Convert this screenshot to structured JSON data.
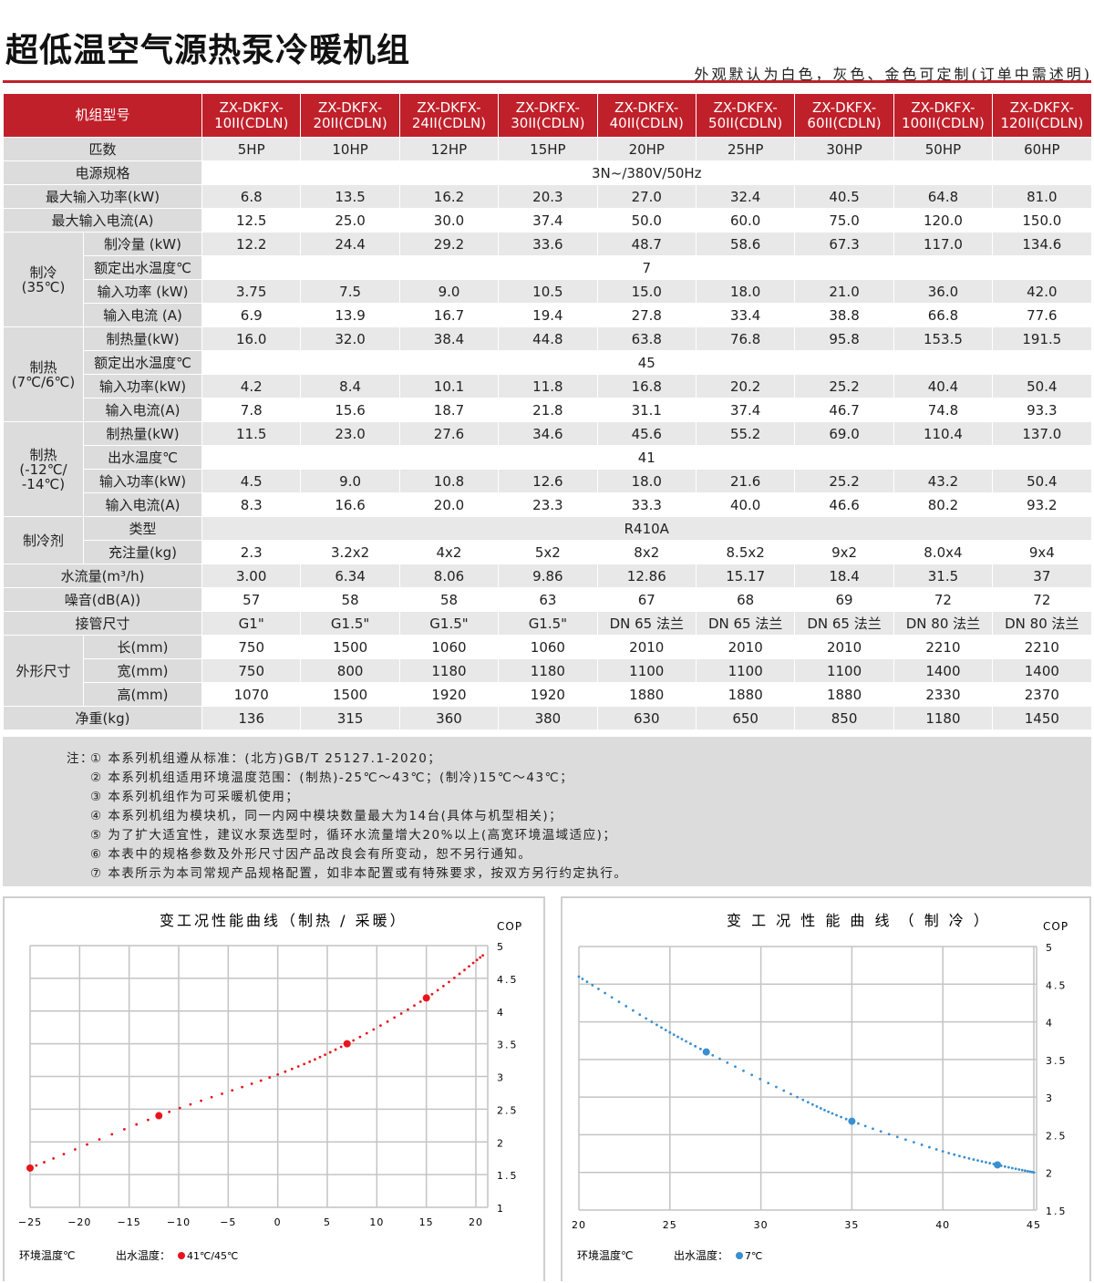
{
  "header": {
    "title": "超低温空气源热泵冷暖机组",
    "subtitle": "外观默认为白色，灰色、金色可定制(订单中需述明)"
  },
  "table": {
    "model_label": "机组型号",
    "models": [
      "ZX-DKFX-\n10II(CDLN)",
      "ZX-DKFX-\n20II(CDLN)",
      "ZX-DKFX-\n24II(CDLN)",
      "ZX-DKFX-\n30II(CDLN)",
      "ZX-DKFX-\n40II(CDLN)",
      "ZX-DKFX-\n50II(CDLN)",
      "ZX-DKFX-\n60II(CDLN)",
      "ZX-DKFX-\n100II(CDLN)",
      "ZX-DKFX-\n120II(CDLN)"
    ],
    "groups": [
      {
        "label": "匹数",
        "rows": [
          {
            "values": [
              "5HP",
              "10HP",
              "12HP",
              "15HP",
              "20HP",
              "25HP",
              "30HP",
              "50HP",
              "60HP"
            ]
          }
        ]
      },
      {
        "label": "电源规格",
        "rows": [
          {
            "span": "3N~/380V/50Hz"
          }
        ]
      },
      {
        "label": "最大输入功率(kW)",
        "rows": [
          {
            "values": [
              "6.8",
              "13.5",
              "16.2",
              "20.3",
              "27.0",
              "32.4",
              "40.5",
              "64.8",
              "81.0"
            ]
          }
        ]
      },
      {
        "label": "最大输入电流(A)",
        "rows": [
          {
            "values": [
              "12.5",
              "25.0",
              "30.0",
              "37.4",
              "50.0",
              "60.0",
              "75.0",
              "120.0",
              "150.0"
            ]
          }
        ]
      },
      {
        "label": "制冷\n(35℃)",
        "rows": [
          {
            "label": "制冷量 (kW)",
            "values": [
              "12.2",
              "24.4",
              "29.2",
              "33.6",
              "48.7",
              "58.6",
              "67.3",
              "117.0",
              "134.6"
            ]
          },
          {
            "label": "额定出水温度℃",
            "span": "7"
          },
          {
            "label": "输入功率 (kW)",
            "values": [
              "3.75",
              "7.5",
              "9.0",
              "10.5",
              "15.0",
              "18.0",
              "21.0",
              "36.0",
              "42.0"
            ]
          },
          {
            "label": "输入电流 (A)",
            "values": [
              "6.9",
              "13.9",
              "16.7",
              "19.4",
              "27.8",
              "33.4",
              "38.8",
              "66.8",
              "77.6"
            ]
          }
        ]
      },
      {
        "label": "制热\n(7℃/6℃)",
        "rows": [
          {
            "label": "制热量(kW)",
            "values": [
              "16.0",
              "32.0",
              "38.4",
              "44.8",
              "63.8",
              "76.8",
              "95.8",
              "153.5",
              "191.5"
            ]
          },
          {
            "label": "额定出水温度℃",
            "span": "45"
          },
          {
            "label": "输入功率(kW)",
            "values": [
              "4.2",
              "8.4",
              "10.1",
              "11.8",
              "16.8",
              "20.2",
              "25.2",
              "40.4",
              "50.4"
            ]
          },
          {
            "label": "输入电流(A)",
            "values": [
              "7.8",
              "15.6",
              "18.7",
              "21.8",
              "31.1",
              "37.4",
              "46.7",
              "74.8",
              "93.3"
            ]
          }
        ]
      },
      {
        "label": "制热\n(-12℃/\n-14℃)",
        "rows": [
          {
            "label": "制热量(kW)",
            "values": [
              "11.5",
              "23.0",
              "27.6",
              "34.6",
              "45.6",
              "55.2",
              "69.0",
              "110.4",
              "137.0"
            ]
          },
          {
            "label": "出水温度℃",
            "span": "41"
          },
          {
            "label": "输入功率(kW)",
            "values": [
              "4.5",
              "9.0",
              "10.8",
              "12.6",
              "18.0",
              "21.6",
              "25.2",
              "43.2",
              "50.4"
            ]
          },
          {
            "label": "输入电流(A)",
            "values": [
              "8.3",
              "16.6",
              "20.0",
              "23.3",
              "33.3",
              "40.0",
              "46.6",
              "80.2",
              "93.2"
            ]
          }
        ]
      },
      {
        "label": "制冷剂",
        "rows": [
          {
            "label": "类型",
            "span": "R410A"
          },
          {
            "label": "充注量(kg)",
            "values": [
              "2.3",
              "3.2x2",
              "4x2",
              "5x2",
              "8x2",
              "8.5x2",
              "9x2",
              "8.0x4",
              "9x4"
            ]
          }
        ]
      },
      {
        "label": "水流量(m³/h)",
        "rows": [
          {
            "values": [
              "3.00",
              "6.34",
              "8.06",
              "9.86",
              "12.86",
              "15.17",
              "18.4",
              "31.5",
              "37"
            ]
          }
        ]
      },
      {
        "label": "噪音(dB(A))",
        "rows": [
          {
            "values": [
              "57",
              "58",
              "58",
              "63",
              "67",
              "68",
              "69",
              "72",
              "72"
            ]
          }
        ]
      },
      {
        "label": "接管尺寸",
        "rows": [
          {
            "values": [
              "G1\"",
              "G1.5\"",
              "G1.5\"",
              "G1.5\"",
              "DN 65 法兰",
              "DN 65 法兰",
              "DN 65 法兰",
              "DN 80 法兰",
              "DN 80 法兰"
            ]
          }
        ]
      },
      {
        "label": "外形尺寸",
        "rows": [
          {
            "label": "长(mm)",
            "values": [
              "750",
              "1500",
              "1060",
              "1060",
              "2010",
              "2010",
              "2010",
              "2210",
              "2210"
            ]
          },
          {
            "label": "宽(mm)",
            "values": [
              "750",
              "800",
              "1180",
              "1180",
              "1100",
              "1100",
              "1100",
              "1400",
              "1400"
            ]
          },
          {
            "label": "高(mm)",
            "values": [
              "1070",
              "1500",
              "1920",
              "1920",
              "1880",
              "1880",
              "1880",
              "2330",
              "2370"
            ]
          }
        ]
      },
      {
        "label": "净重(kg)",
        "rows": [
          {
            "values": [
              "136",
              "315",
              "360",
              "380",
              "630",
              "650",
              "850",
              "1180",
              "1450"
            ]
          }
        ]
      }
    ]
  },
  "notes": {
    "prefix": "注：",
    "items": [
      "① 本系列机组遵从标准：(北方)GB/T 25127.1-2020；",
      "② 本系列机组适用环境温度范围：(制热)-25℃～43℃；(制冷)15℃～43℃；",
      "③ 本系列机组作为可采暖机使用；",
      "④ 本系列机组为模块机，同一内网中模块数量最大为14台(具体与机型相关)；",
      "⑤ 为了扩大适宜性，建议水泵选型时，循环水流量增大20%以上(高宽环境温域适应)；",
      "⑥ 本表中的规格参数及外形尺寸因产品改良会有所变动，恕不另行通知。",
      "⑦ 本表所示为本司常规产品规格配置，如非本配置或有特殊要求，按双方另行约定执行。"
    ]
  },
  "colors": {
    "accent": "#c0202a",
    "heating": "#e8141c",
    "cooling": "#3a8fd0"
  },
  "chart_data": [
    {
      "type": "scatter",
      "title": "变工况性能曲线（制热 / 采暖）",
      "xlabel": "环境温度℃",
      "ylabel": "COP",
      "legend_label": "出水温度：",
      "legend": "41℃/45℃",
      "xlim": [
        -25,
        20
      ],
      "ylim": [
        1,
        5
      ],
      "xticks": [
        -25,
        -20,
        -15,
        -10,
        -5,
        0,
        5,
        10,
        15,
        20
      ],
      "yticks": [
        1,
        1.5,
        2,
        2.5,
        3,
        3.5,
        4,
        4.5,
        5
      ],
      "ytick_labels": [
        "1",
        "1.5",
        "2",
        "2.5",
        "3",
        "3.5",
        "4",
        "4.5",
        "5"
      ],
      "grid": true,
      "points": [
        [
          -25,
          1.6
        ],
        [
          -12,
          2.4
        ],
        [
          7,
          3.5
        ],
        [
          15,
          4.2
        ]
      ],
      "curve": [
        [
          -25,
          1.6
        ],
        [
          -12,
          2.4
        ],
        [
          0,
          3.03
        ],
        [
          7,
          3.5
        ],
        [
          15,
          4.2
        ],
        [
          20.7,
          4.85
        ]
      ]
    },
    {
      "type": "scatter",
      "title": "变 工 况 性 能 曲 线 （ 制 冷 ）",
      "xlabel": "环境温度℃",
      "ylabel": "COP",
      "legend_label": "出水温度：",
      "legend": "7℃",
      "xlim": [
        20,
        45
      ],
      "ylim": [
        1.5,
        5
      ],
      "xticks": [
        20,
        25,
        30,
        35,
        40,
        45
      ],
      "yticks": [
        1.5,
        2,
        2.5,
        3,
        3.5,
        4,
        4.5,
        5
      ],
      "ytick_labels": [
        "1.5",
        "2",
        "2.5",
        "3",
        "3.5",
        "4",
        "4.5",
        "5"
      ],
      "grid": true,
      "points": [
        [
          27,
          3.6
        ],
        [
          35,
          2.68
        ],
        [
          43,
          2.1
        ]
      ],
      "curve": [
        [
          20,
          4.6
        ],
        [
          24,
          4.0
        ],
        [
          27,
          3.6
        ],
        [
          32,
          3.0
        ],
        [
          35,
          2.68
        ],
        [
          40,
          2.28
        ],
        [
          43,
          2.1
        ],
        [
          45,
          2.0
        ]
      ]
    }
  ]
}
